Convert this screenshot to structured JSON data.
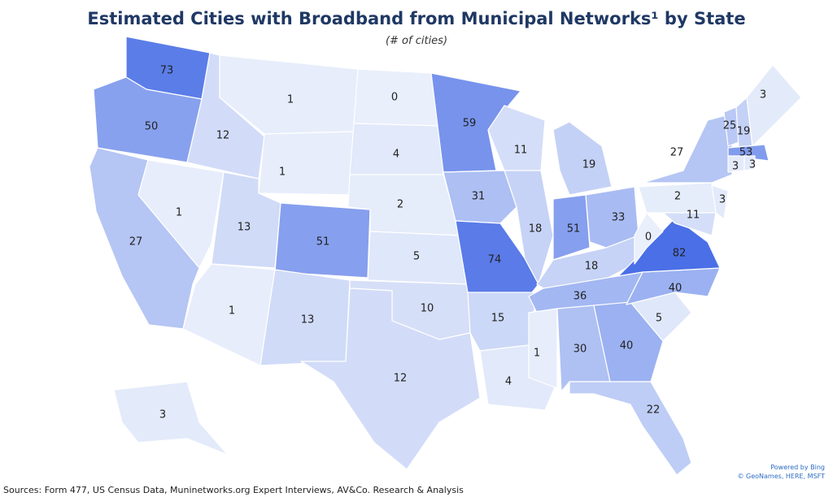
{
  "title": "Estimated Cities with Broadband from Municipal Networks¹ by State",
  "subtitle": "(# of cities)",
  "map": {
    "type": "choropleth",
    "values": [
      73,
      50,
      27,
      1,
      12,
      1,
      1,
      13,
      51,
      1,
      13,
      0,
      4,
      2,
      5,
      10,
      12,
      59,
      31,
      74,
      15,
      4,
      11,
      18,
      19,
      51,
      33,
      18,
      36,
      1,
      30,
      40,
      22,
      5,
      40,
      82,
      0,
      2,
      11,
      3,
      27,
      25,
      19,
      3,
      53,
      3,
      3,
      3
    ],
    "color_range": [
      "#e9effb",
      "#4a6fe6"
    ]
  },
  "attribution": [
    "Powered by Bing",
    "© GeoNames, HERE, MSFT"
  ],
  "source": "Sources: Form 477, US Census Data, Muninetworks.org Expert Interviews, AV&Co. Research & Analysis"
}
